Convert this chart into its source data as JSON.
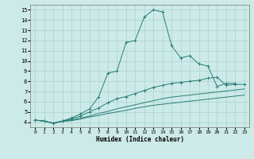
{
  "title": "",
  "xlabel": "Humidex (Indice chaleur)",
  "bg_color": "#cceae7",
  "grid_color": "#aad4d0",
  "line_color": "#2a7d78",
  "xlim": [
    -0.5,
    23.5
  ],
  "ylim": [
    3.5,
    15.5
  ],
  "xticks": [
    0,
    1,
    2,
    3,
    4,
    5,
    6,
    7,
    8,
    9,
    10,
    11,
    12,
    13,
    14,
    15,
    16,
    17,
    18,
    19,
    20,
    21,
    22,
    23
  ],
  "yticks": [
    4,
    5,
    6,
    7,
    8,
    9,
    10,
    11,
    12,
    13,
    14,
    15
  ],
  "line1_x": [
    0,
    1,
    2,
    3,
    4,
    5,
    6,
    7,
    8,
    9,
    10,
    11,
    12,
    13,
    14,
    15,
    16,
    17,
    18,
    19,
    20,
    21,
    22
  ],
  "line1_y": [
    4.2,
    4.1,
    3.9,
    4.1,
    4.4,
    4.8,
    5.3,
    6.5,
    8.8,
    9.0,
    11.8,
    12.0,
    14.3,
    15.0,
    14.8,
    11.5,
    10.3,
    10.5,
    9.7,
    9.5,
    7.5,
    7.8,
    7.8
  ],
  "line2_x": [
    0,
    1,
    2,
    3,
    4,
    5,
    6,
    7,
    8,
    9,
    10,
    11,
    12,
    13,
    14,
    15,
    16,
    17,
    18,
    19,
    20,
    21,
    22,
    23
  ],
  "line2_y": [
    4.2,
    4.1,
    3.9,
    4.1,
    4.3,
    4.6,
    5.0,
    5.4,
    5.9,
    6.3,
    6.5,
    6.8,
    7.1,
    7.4,
    7.6,
    7.8,
    7.9,
    8.0,
    8.1,
    8.3,
    8.4,
    7.6,
    7.7,
    7.7
  ],
  "line3_x": [
    0,
    1,
    2,
    3,
    4,
    5,
    6,
    7,
    8,
    9,
    10,
    11,
    12,
    13,
    14,
    15,
    16,
    17,
    18,
    19,
    20,
    21,
    22,
    23
  ],
  "line3_y": [
    4.2,
    4.1,
    3.9,
    4.1,
    4.2,
    4.4,
    4.6,
    4.85,
    5.05,
    5.3,
    5.5,
    5.7,
    5.9,
    6.1,
    6.3,
    6.45,
    6.55,
    6.65,
    6.75,
    6.85,
    6.95,
    7.05,
    7.15,
    7.25
  ],
  "line4_x": [
    0,
    1,
    2,
    3,
    4,
    5,
    6,
    7,
    8,
    9,
    10,
    11,
    12,
    13,
    14,
    15,
    16,
    17,
    18,
    19,
    20,
    21,
    22,
    23
  ],
  "line4_y": [
    4.2,
    4.1,
    3.9,
    4.05,
    4.15,
    4.3,
    4.5,
    4.65,
    4.85,
    5.0,
    5.15,
    5.35,
    5.5,
    5.65,
    5.75,
    5.85,
    5.95,
    6.05,
    6.15,
    6.25,
    6.35,
    6.45,
    6.55,
    6.65
  ]
}
